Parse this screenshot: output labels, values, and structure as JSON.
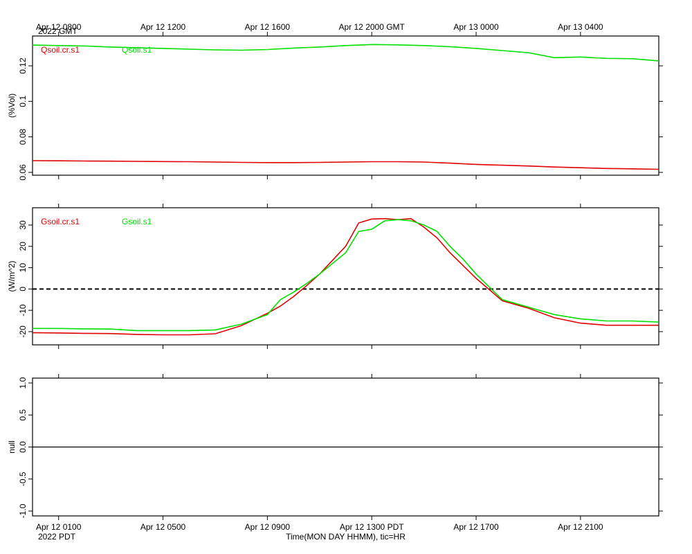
{
  "chart_data": [
    {
      "type": "line",
      "y_label": "(%Vol)",
      "x": [
        0,
        1,
        2,
        3,
        4,
        5,
        6,
        7,
        8,
        9,
        10,
        11,
        12,
        13,
        14,
        15,
        16,
        17,
        18,
        19,
        20,
        21,
        22,
        23,
        24
      ],
      "xlim": [
        0,
        24
      ],
      "xticks": [
        {
          "value": 1,
          "label": "Apr 12 0800"
        },
        {
          "value": 5,
          "label": "Apr 12 1200"
        },
        {
          "value": 9,
          "label": "Apr 12 1600"
        },
        {
          "value": 13,
          "label": "Apr 12 2000 GMT"
        },
        {
          "value": 17,
          "label": "Apr 13 0000"
        },
        {
          "value": 21,
          "label": "Apr 13 0400"
        }
      ],
      "xtick_labels": "top",
      "x_year_label": "2022 GMT",
      "ylim": [
        0.0584,
        0.1368
      ],
      "yticks": [
        0.06,
        0.08,
        0.1,
        0.12
      ],
      "series": [
        {
          "name": "Qsoil.cr.s1",
          "color": "#e00000",
          "values": [
            0.0666,
            0.0665,
            0.0664,
            0.0663,
            0.0662,
            0.0661,
            0.066,
            0.0658,
            0.0656,
            0.0655,
            0.0655,
            0.0656,
            0.0658,
            0.066,
            0.066,
            0.0658,
            0.0652,
            0.0645,
            0.064,
            0.0636,
            0.063,
            0.0626,
            0.0622,
            0.062,
            0.0617
          ]
        },
        {
          "name": "Qsoil.s1",
          "color": "#00e000",
          "values": [
            0.1317,
            0.1314,
            0.1312,
            0.1306,
            0.1302,
            0.1298,
            0.1294,
            0.129,
            0.1288,
            0.1292,
            0.13,
            0.1306,
            0.1314,
            0.132,
            0.1318,
            0.1314,
            0.1308,
            0.1298,
            0.1286,
            0.1274,
            0.1246,
            0.125,
            0.1242,
            0.124,
            0.1228
          ]
        }
      ]
    },
    {
      "type": "line",
      "y_label": "(W/m^2)",
      "x": [
        0,
        1,
        2,
        3,
        4,
        5,
        6,
        7,
        8,
        9,
        9.5,
        10,
        10.5,
        11,
        11.5,
        12,
        12.5,
        13,
        13.5,
        14,
        14.5,
        15,
        15.5,
        16,
        16.5,
        17,
        18,
        19,
        20,
        21,
        22,
        23,
        24
      ],
      "xlim": [
        0,
        24
      ],
      "xticks": [
        1,
        5,
        9,
        13,
        17,
        21
      ],
      "xtick_labels": "none",
      "ylim": [
        -26.2,
        38.1
      ],
      "yticks": [
        -20,
        -10,
        0,
        10,
        20,
        30
      ],
      "zero_line": "dashed",
      "series": [
        {
          "name": "Gsoil.cr.s1",
          "color": "#e00000",
          "values": [
            -20.5,
            -20.6,
            -20.8,
            -20.9,
            -21.3,
            -21.5,
            -21.5,
            -21,
            -17.2,
            -11.4,
            -8,
            -3.6,
            1.5,
            7,
            13.5,
            20,
            31,
            32.8,
            33,
            32.5,
            33,
            29,
            24,
            17,
            11,
            5,
            -5.5,
            -9,
            -13.5,
            -16,
            -17,
            -17,
            -17
          ]
        },
        {
          "name": "Gsoil.s1",
          "color": "#00e000",
          "values": [
            -18.5,
            -18.5,
            -18.7,
            -18.8,
            -19.5,
            -19.5,
            -19.5,
            -19.2,
            -16.5,
            -12,
            -5,
            -1.5,
            2.5,
            7,
            12,
            17,
            27,
            28,
            32,
            32.5,
            32,
            30,
            27,
            20,
            14,
            7,
            -5,
            -8.5,
            -12,
            -14,
            -15,
            -15,
            -15.5
          ]
        }
      ]
    },
    {
      "type": "line",
      "y_label": "null",
      "xlim": [
        0,
        24
      ],
      "xticks": [
        {
          "value": 1,
          "label": "Apr 12 0100"
        },
        {
          "value": 5,
          "label": "Apr 12 0500"
        },
        {
          "value": 9,
          "label": "Apr 12 0900"
        },
        {
          "value": 13,
          "label": "Apr 12 1300 PDT"
        },
        {
          "value": 17,
          "label": "Apr 12 1700"
        },
        {
          "value": 21,
          "label": "Apr 12 2100"
        }
      ],
      "xtick_labels": "bottom",
      "x_year_label": "2022 PDT",
      "x_label": "Time(MON DAY HHMM), tic=HR",
      "ylim": [
        -1.076,
        1.076
      ],
      "yticks": [
        {
          "value": -1,
          "label": "-1.0"
        },
        {
          "value": -0.5,
          "label": "-0.5"
        },
        {
          "value": 0,
          "label": "0.0"
        },
        {
          "value": 0.5,
          "label": "0.5"
        },
        {
          "value": 1,
          "label": "1.0"
        }
      ],
      "zero_line": "solid",
      "series": []
    }
  ]
}
